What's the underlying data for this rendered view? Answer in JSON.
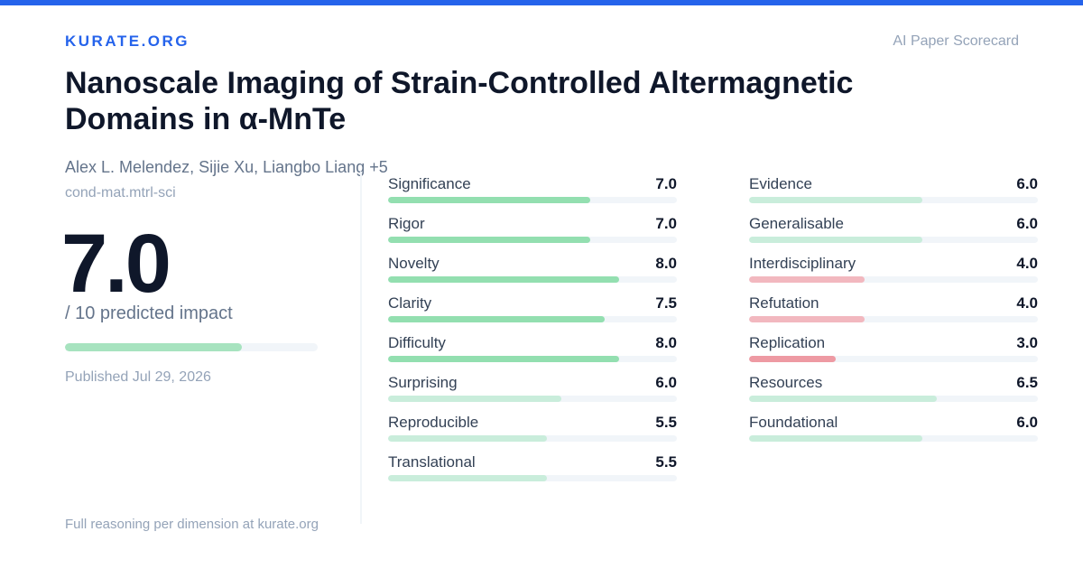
{
  "header": {
    "brand": "KURATE.ORG",
    "tagline": "AI Paper Scorecard"
  },
  "paper": {
    "title": "Nanoscale Imaging of Strain-Controlled Altermagnetic Domains in α-MnTe",
    "authors": "Alex L. Melendez, Sijie Xu, Liangbo Liang +5",
    "category": "cond-mat.mtrl-sci",
    "score": "7.0",
    "score_fraction": 0.7,
    "score_label": "/ 10 predicted impact",
    "published": "Published Jul 29, 2026"
  },
  "colors": {
    "accent": "#2563eb",
    "high": "#93dfb0",
    "mid": "#c9eddb",
    "low": "#f2b8bf",
    "very_low": "#ee9aa3"
  },
  "dimensions_left": [
    {
      "name": "Significance",
      "value": "7.0",
      "level": "high"
    },
    {
      "name": "Rigor",
      "value": "7.0",
      "level": "high"
    },
    {
      "name": "Novelty",
      "value": "8.0",
      "level": "high"
    },
    {
      "name": "Clarity",
      "value": "7.5",
      "level": "high"
    },
    {
      "name": "Difficulty",
      "value": "8.0",
      "level": "high"
    },
    {
      "name": "Surprising",
      "value": "6.0",
      "level": "mid"
    },
    {
      "name": "Reproducible",
      "value": "5.5",
      "level": "mid"
    },
    {
      "name": "Translational",
      "value": "5.5",
      "level": "mid"
    }
  ],
  "dimensions_right": [
    {
      "name": "Evidence",
      "value": "6.0",
      "level": "mid"
    },
    {
      "name": "Generalisable",
      "value": "6.0",
      "level": "mid"
    },
    {
      "name": "Interdisciplinary",
      "value": "4.0",
      "level": "low"
    },
    {
      "name": "Refutation",
      "value": "4.0",
      "level": "low"
    },
    {
      "name": "Replication",
      "value": "3.0",
      "level": "very_low"
    },
    {
      "name": "Resources",
      "value": "6.5",
      "level": "mid"
    },
    {
      "name": "Foundational",
      "value": "6.0",
      "level": "mid"
    }
  ],
  "footer": "Full reasoning per dimension at kurate.org"
}
